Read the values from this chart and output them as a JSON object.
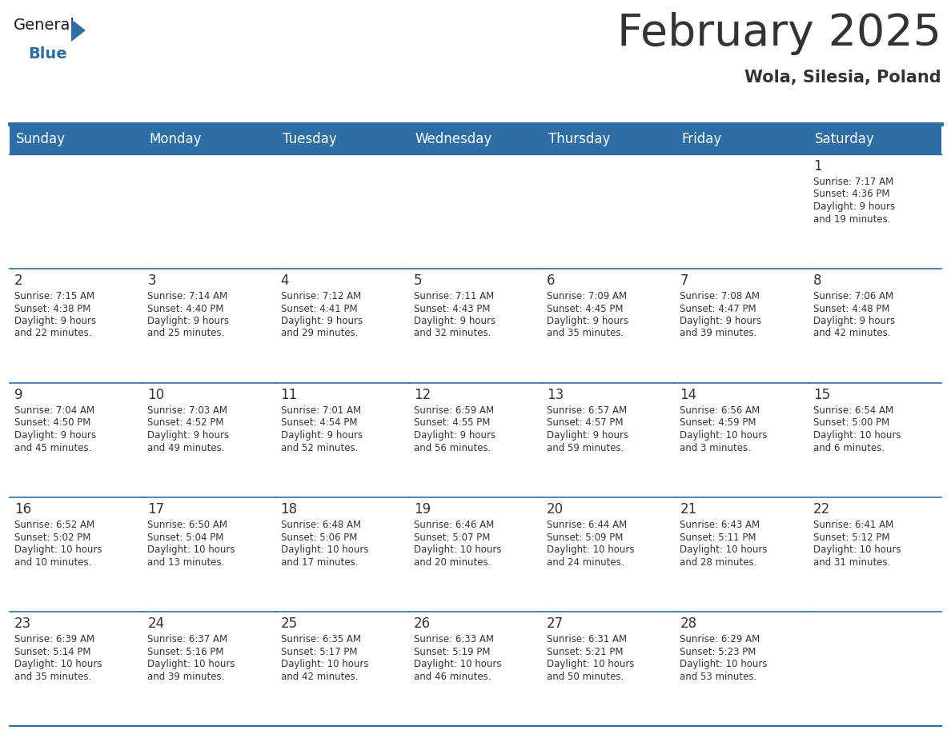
{
  "title": "February 2025",
  "subtitle": "Wola, Silesia, Poland",
  "header_bg": "#2E6EA6",
  "header_text": "#FFFFFF",
  "cell_bg": "#FFFFFF",
  "border_color": "#2E6EA6",
  "text_color": "#333333",
  "day_headers": [
    "Sunday",
    "Monday",
    "Tuesday",
    "Wednesday",
    "Thursday",
    "Friday",
    "Saturday"
  ],
  "weeks": [
    [
      {
        "day": "",
        "info": ""
      },
      {
        "day": "",
        "info": ""
      },
      {
        "day": "",
        "info": ""
      },
      {
        "day": "",
        "info": ""
      },
      {
        "day": "",
        "info": ""
      },
      {
        "day": "",
        "info": ""
      },
      {
        "day": "1",
        "info": "Sunrise: 7:17 AM\nSunset: 4:36 PM\nDaylight: 9 hours\nand 19 minutes."
      }
    ],
    [
      {
        "day": "2",
        "info": "Sunrise: 7:15 AM\nSunset: 4:38 PM\nDaylight: 9 hours\nand 22 minutes."
      },
      {
        "day": "3",
        "info": "Sunrise: 7:14 AM\nSunset: 4:40 PM\nDaylight: 9 hours\nand 25 minutes."
      },
      {
        "day": "4",
        "info": "Sunrise: 7:12 AM\nSunset: 4:41 PM\nDaylight: 9 hours\nand 29 minutes."
      },
      {
        "day": "5",
        "info": "Sunrise: 7:11 AM\nSunset: 4:43 PM\nDaylight: 9 hours\nand 32 minutes."
      },
      {
        "day": "6",
        "info": "Sunrise: 7:09 AM\nSunset: 4:45 PM\nDaylight: 9 hours\nand 35 minutes."
      },
      {
        "day": "7",
        "info": "Sunrise: 7:08 AM\nSunset: 4:47 PM\nDaylight: 9 hours\nand 39 minutes."
      },
      {
        "day": "8",
        "info": "Sunrise: 7:06 AM\nSunset: 4:48 PM\nDaylight: 9 hours\nand 42 minutes."
      }
    ],
    [
      {
        "day": "9",
        "info": "Sunrise: 7:04 AM\nSunset: 4:50 PM\nDaylight: 9 hours\nand 45 minutes."
      },
      {
        "day": "10",
        "info": "Sunrise: 7:03 AM\nSunset: 4:52 PM\nDaylight: 9 hours\nand 49 minutes."
      },
      {
        "day": "11",
        "info": "Sunrise: 7:01 AM\nSunset: 4:54 PM\nDaylight: 9 hours\nand 52 minutes."
      },
      {
        "day": "12",
        "info": "Sunrise: 6:59 AM\nSunset: 4:55 PM\nDaylight: 9 hours\nand 56 minutes."
      },
      {
        "day": "13",
        "info": "Sunrise: 6:57 AM\nSunset: 4:57 PM\nDaylight: 9 hours\nand 59 minutes."
      },
      {
        "day": "14",
        "info": "Sunrise: 6:56 AM\nSunset: 4:59 PM\nDaylight: 10 hours\nand 3 minutes."
      },
      {
        "day": "15",
        "info": "Sunrise: 6:54 AM\nSunset: 5:00 PM\nDaylight: 10 hours\nand 6 minutes."
      }
    ],
    [
      {
        "day": "16",
        "info": "Sunrise: 6:52 AM\nSunset: 5:02 PM\nDaylight: 10 hours\nand 10 minutes."
      },
      {
        "day": "17",
        "info": "Sunrise: 6:50 AM\nSunset: 5:04 PM\nDaylight: 10 hours\nand 13 minutes."
      },
      {
        "day": "18",
        "info": "Sunrise: 6:48 AM\nSunset: 5:06 PM\nDaylight: 10 hours\nand 17 minutes."
      },
      {
        "day": "19",
        "info": "Sunrise: 6:46 AM\nSunset: 5:07 PM\nDaylight: 10 hours\nand 20 minutes."
      },
      {
        "day": "20",
        "info": "Sunrise: 6:44 AM\nSunset: 5:09 PM\nDaylight: 10 hours\nand 24 minutes."
      },
      {
        "day": "21",
        "info": "Sunrise: 6:43 AM\nSunset: 5:11 PM\nDaylight: 10 hours\nand 28 minutes."
      },
      {
        "day": "22",
        "info": "Sunrise: 6:41 AM\nSunset: 5:12 PM\nDaylight: 10 hours\nand 31 minutes."
      }
    ],
    [
      {
        "day": "23",
        "info": "Sunrise: 6:39 AM\nSunset: 5:14 PM\nDaylight: 10 hours\nand 35 minutes."
      },
      {
        "day": "24",
        "info": "Sunrise: 6:37 AM\nSunset: 5:16 PM\nDaylight: 10 hours\nand 39 minutes."
      },
      {
        "day": "25",
        "info": "Sunrise: 6:35 AM\nSunset: 5:17 PM\nDaylight: 10 hours\nand 42 minutes."
      },
      {
        "day": "26",
        "info": "Sunrise: 6:33 AM\nSunset: 5:19 PM\nDaylight: 10 hours\nand 46 minutes."
      },
      {
        "day": "27",
        "info": "Sunrise: 6:31 AM\nSunset: 5:21 PM\nDaylight: 10 hours\nand 50 minutes."
      },
      {
        "day": "28",
        "info": "Sunrise: 6:29 AM\nSunset: 5:23 PM\nDaylight: 10 hours\nand 53 minutes."
      },
      {
        "day": "",
        "info": ""
      }
    ]
  ],
  "logo_text_general": "General",
  "logo_text_blue": "Blue",
  "logo_color_general": "#1A1A1A",
  "logo_color_blue": "#2E6EA6",
  "logo_triangle_color": "#2E6EA6",
  "title_fontsize": 40,
  "subtitle_fontsize": 15,
  "header_fontsize": 12,
  "day_num_fontsize": 12,
  "info_fontsize": 8.5
}
